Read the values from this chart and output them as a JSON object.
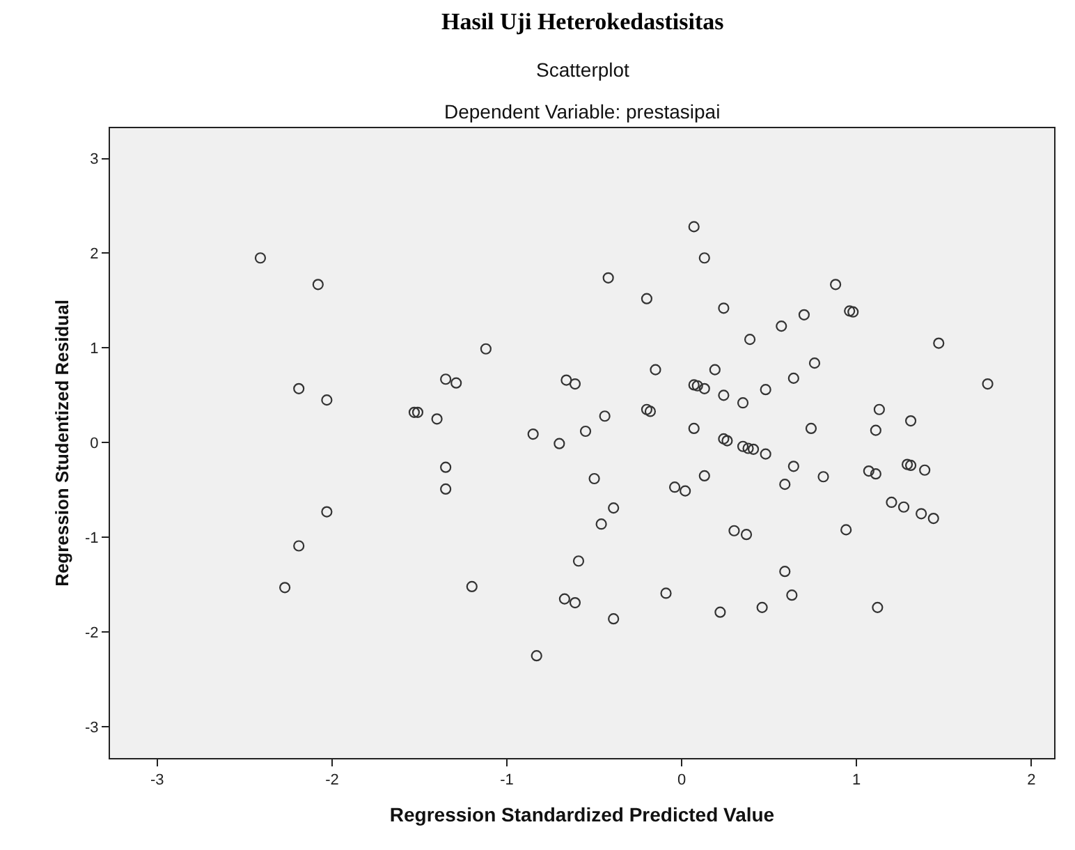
{
  "chart_data": {
    "type": "scatter",
    "title": "Scatterplot",
    "subtitle": "Dependent Variable: prestasipai",
    "xlabel": "Regression Standardized Predicted Value",
    "ylabel": "Regression Studentized Residual",
    "annotations": [
      "Hasil Uji Heterokedastisitas"
    ],
    "x": [
      -2.41,
      -2.08,
      -2.19,
      -2.03,
      -1.53,
      -2.03,
      -2.19,
      -2.27,
      0.07,
      0.13,
      -0.42,
      -0.2,
      0.24,
      -1.12,
      -0.15,
      0.19,
      -1.35,
      -1.29,
      -0.66,
      -0.61,
      0.07,
      0.09,
      0.13,
      0.24,
      -1.51,
      -1.4,
      -0.2,
      -0.18,
      -0.44,
      -0.85,
      -0.7,
      -0.55,
      0.07,
      0.24,
      0.26,
      0.88,
      0.96,
      0.98,
      0.7,
      0.57,
      0.39,
      1.47,
      0.76,
      0.64,
      1.75,
      0.48,
      0.35,
      1.13,
      1.31,
      0.74,
      1.11,
      0.35,
      0.38,
      0.41,
      0.48,
      0.64,
      0.59,
      0.81,
      1.07,
      1.11,
      1.29,
      1.31,
      1.39,
      1.2,
      1.27,
      1.37,
      1.44,
      0.94,
      0.3,
      0.37,
      0.59,
      0.63,
      0.46,
      1.12,
      0.22,
      -1.35,
      -1.35,
      -0.5,
      -0.04,
      0.02,
      0.13,
      -0.39,
      -0.46,
      -0.59,
      -1.2,
      -0.09,
      -0.67,
      -0.61,
      -0.39,
      -0.83
    ],
    "values": [
      1.95,
      1.67,
      0.57,
      0.45,
      0.32,
      -0.73,
      -1.09,
      -1.53,
      2.28,
      1.95,
      1.74,
      1.52,
      1.42,
      0.99,
      0.77,
      0.77,
      0.67,
      0.63,
      0.66,
      0.62,
      0.61,
      0.6,
      0.57,
      0.5,
      0.32,
      0.25,
      0.35,
      0.33,
      0.28,
      0.09,
      -0.01,
      0.12,
      0.15,
      0.04,
      0.02,
      1.67,
      1.39,
      1.38,
      1.35,
      1.23,
      1.09,
      1.05,
      0.84,
      0.68,
      0.62,
      0.56,
      0.42,
      0.35,
      0.23,
      0.15,
      0.13,
      -0.04,
      -0.06,
      -0.07,
      -0.12,
      -0.25,
      -0.44,
      -0.36,
      -0.3,
      -0.33,
      -0.23,
      -0.24,
      -0.29,
      -0.63,
      -0.68,
      -0.75,
      -0.8,
      -0.92,
      -0.93,
      -0.97,
      -1.36,
      -1.61,
      -1.74,
      -1.74,
      -1.79,
      -0.26,
      -0.49,
      -0.38,
      -0.47,
      -0.51,
      -0.35,
      -0.69,
      -0.86,
      -1.25,
      -1.52,
      -1.59,
      -1.65,
      -1.69,
      -1.86,
      -2.25
    ],
    "color": "#333333",
    "marker": "circle",
    "xlim": [
      -3.27,
      2.13
    ],
    "ylim": [
      -3.33,
      3.32
    ],
    "xticks": [
      -3,
      -2,
      -1,
      0,
      1,
      2
    ],
    "yticks": [
      -3,
      -2,
      -1,
      0,
      1,
      2,
      3
    ],
    "grid": false
  }
}
